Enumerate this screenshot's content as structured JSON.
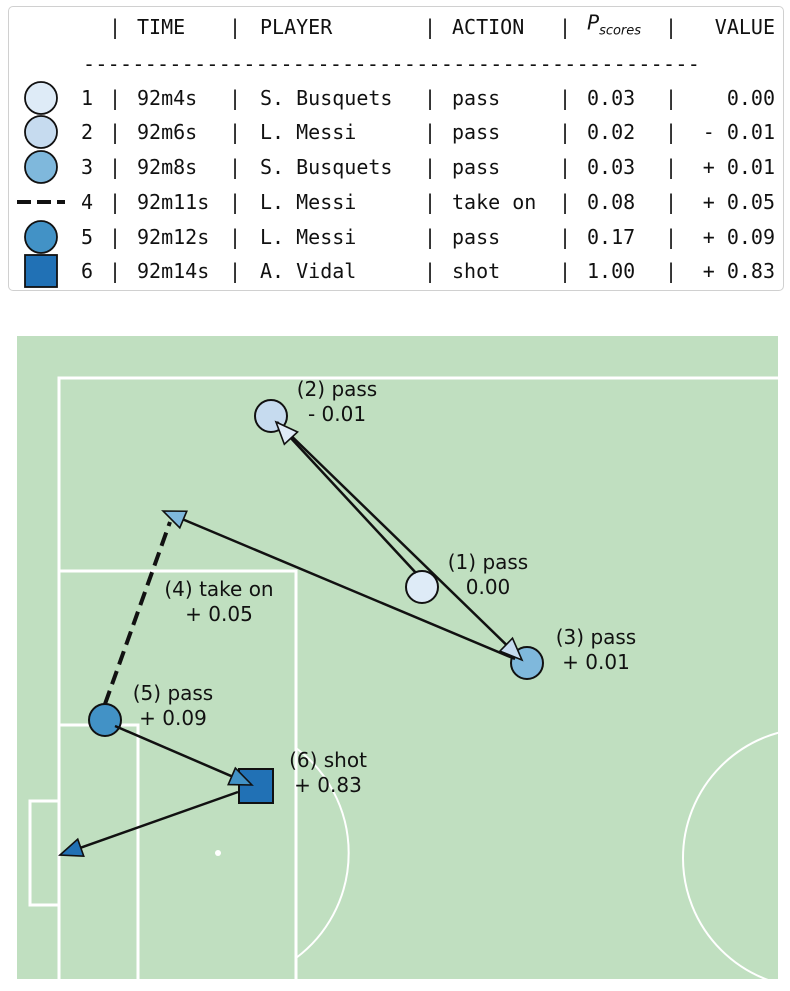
{
  "legend": {
    "headers": {
      "time": "TIME",
      "player": "PLAYER",
      "action": "ACTION",
      "p_scores_main": "P",
      "p_scores_sub": "scores",
      "value": "VALUE"
    },
    "separator": "--------------------------------------------------",
    "rows": [
      {
        "n": "1",
        "time": "92m4s",
        "player": "S. Busquets",
        "action": "pass",
        "p_scores": "0.03",
        "value": "0.00",
        "marker": "circle",
        "color": "#deebf7"
      },
      {
        "n": "2",
        "time": "92m6s",
        "player": "L. Messi",
        "action": "pass",
        "p_scores": "0.02",
        "value": "- 0.01",
        "marker": "circle",
        "color": "#c6dbef"
      },
      {
        "n": "3",
        "time": "92m8s",
        "player": "S. Busquets",
        "action": "pass",
        "p_scores": "0.03",
        "value": "+ 0.01",
        "marker": "circle",
        "color": "#7fb8dc"
      },
      {
        "n": "4",
        "time": "92m11s",
        "player": "L. Messi",
        "action": "take on",
        "p_scores": "0.08",
        "value": "+ 0.05",
        "marker": "dashed-line",
        "color": "#000000"
      },
      {
        "n": "5",
        "time": "92m12s",
        "player": "L. Messi",
        "action": "pass",
        "p_scores": "0.17",
        "value": "+ 0.09",
        "marker": "circle",
        "color": "#4292c6"
      },
      {
        "n": "6",
        "time": "92m14s",
        "player": "A. Vidal",
        "action": "shot",
        "p_scores": "1.00",
        "value": "+ 0.83",
        "marker": "square",
        "color": "#2171b5"
      }
    ]
  },
  "pitch": {
    "background": "#c0dfc0",
    "line_color": "#ffffff",
    "annotations": [
      {
        "title": "(1) pass",
        "value": "0.00"
      },
      {
        "title": "(2) pass",
        "value": "- 0.01"
      },
      {
        "title": "(3) pass",
        "value": "+ 0.01"
      },
      {
        "title": "(4) take on",
        "value": "+ 0.05"
      },
      {
        "title": "(5) pass",
        "value": "+ 0.09"
      },
      {
        "title": "(6) shot",
        "value": "+ 0.83"
      }
    ]
  }
}
